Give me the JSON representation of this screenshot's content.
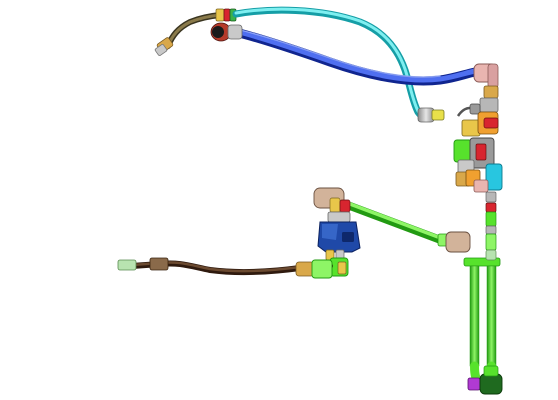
{
  "scene": {
    "kind": "3D CAD render of tube and hose routing assembly",
    "background": "#ffffff",
    "colors": {
      "tube_blue": "#2c4fd6",
      "tube_blue_dark": "#10258f",
      "tube_cyan": "#49d3d8",
      "tube_cyan_dark": "#159ea6",
      "tube_green": "#57e22c",
      "tube_green_dark": "#229a12",
      "hose_brown": "#5b3a22",
      "hose_brown_dark": "#2f1a0e",
      "hose_olive": "#8a7a4a",
      "fitting_gold": "#d9a84a",
      "fitting_orange": "#f0a030",
      "fitting_red": "#d8252f",
      "fitting_pink": "#e9b5b0",
      "fitting_tan": "#d2b39a",
      "fitting_grey": "#b7b7b7",
      "fitting_purple": "#b03ad2",
      "fitting_yellow": "#e8e04a",
      "block_navy": "#1f49a8",
      "block_cyan": "#28c6e0"
    }
  }
}
